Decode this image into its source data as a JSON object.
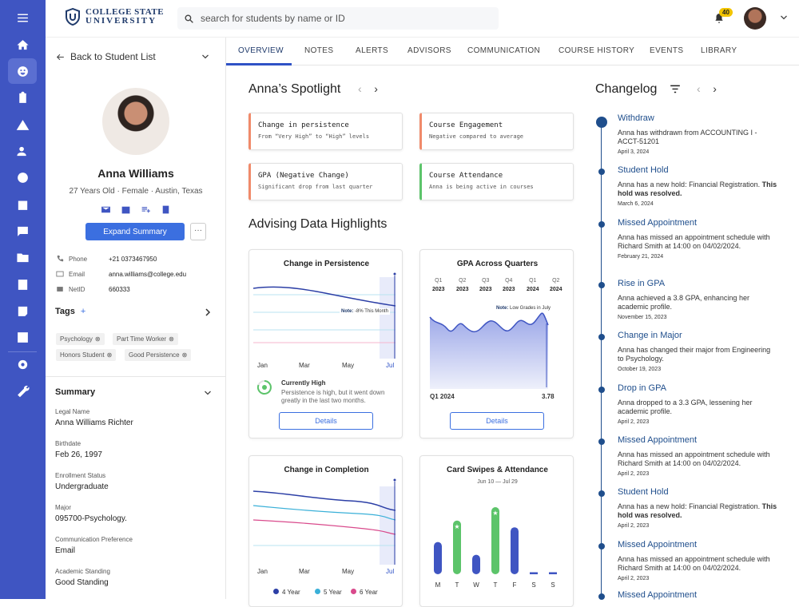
{
  "app": {
    "logo_line1": "COLLEGE STATE",
    "logo_line2": "UNIVERSITY",
    "search_placeholder": "search for students by name or ID",
    "notif_count": "40"
  },
  "rail": [
    "menu-icon",
    "home-icon",
    "student-icon",
    "clipboard-icon",
    "alert-icon",
    "user-check-icon",
    "bolt-icon",
    "calendar-icon",
    "chat-icon",
    "folder-icon",
    "id-card-icon",
    "add-note-icon",
    "chart-icon",
    "settings-icon",
    "wrench-icon"
  ],
  "student": {
    "back": "Back to Student List",
    "name": "Anna Williams",
    "meta": "27 Years Old  ·  Female  ·  Austin, Texas",
    "expand": "Expand Summary",
    "more": "···",
    "phone_label": "Phone",
    "phone": "+21 0373467950",
    "email_label": "Email",
    "email": "anna.williams@college.edu",
    "netid_label": "NetID",
    "netid": "660333",
    "tags_title": "Tags",
    "tags_add": "+",
    "tags": [
      "Psychology",
      "Part Time Worker",
      "Honors Student",
      "Good Persistence"
    ],
    "summary_title": "Summary",
    "summary": [
      {
        "label": "Legal Name",
        "value": "Anna Williams Richter"
      },
      {
        "label": "Birthdate",
        "value": "Feb 26, 1997"
      },
      {
        "label": "Enrollment Status",
        "value": "Undergraduate"
      },
      {
        "label": "Major",
        "value": "095700-Psychology."
      },
      {
        "label": "Communication Preference",
        "value": "Email"
      },
      {
        "label": "Academic Standing",
        "value": "Good Standing"
      }
    ]
  },
  "tabs": [
    "OVERVIEW",
    "NOTES",
    "ALERTS",
    "ADVISORS",
    "COMMUNICATION",
    "COURSE HISTORY",
    "EVENTS",
    "LIBRARY"
  ],
  "spotlight": {
    "title": "Anna’s Spotlight",
    "cards": [
      {
        "title": "Change in persistence",
        "sub": "From “Very High” to “High” levels",
        "color": "#f08a6a"
      },
      {
        "title": "Course Engagement",
        "sub": "Negative compared to average",
        "color": "#f08a6a"
      },
      {
        "title": "GPA (Negative Change)",
        "sub": "Significant drop from last quarter",
        "color": "#f08a6a"
      },
      {
        "title": "Course Attendance",
        "sub": "Anna is being active in courses",
        "color": "#5cc46a"
      }
    ]
  },
  "highlights": {
    "title": "Advising Data Highlights",
    "persistence": {
      "title": "Change in Persistence",
      "note": "Note:",
      "note_text": " -8% This Month",
      "status_title": "Currently High",
      "status_text": "Persistence is high, but it went down greatly in the last two months.",
      "details": "Details",
      "xlabels": [
        "Jan",
        "Mar",
        "May",
        "Jul"
      ]
    },
    "gpa": {
      "title": "GPA Across Quarters",
      "quarters": [
        "Q1",
        "Q2",
        "Q3",
        "Q4",
        "Q1",
        "Q2"
      ],
      "years": [
        "2023",
        "2023",
        "2023",
        "2023",
        "2024",
        "2024"
      ],
      "note": "Note:",
      "note_text": " Low Grades in July",
      "left_label": "Q1 2024",
      "right_label": "3.78",
      "details": "Details"
    },
    "completion": {
      "title": "Change in Completion",
      "xlabels": [
        "Jan",
        "Mar",
        "May",
        "Jul"
      ],
      "legend": [
        "4 Year",
        "5 Year",
        "6 Year"
      ],
      "legend_colors": [
        "#2c3fa6",
        "#3ab0d8",
        "#d94a8c"
      ]
    },
    "swipes": {
      "title": "Card Swipes & Attendance",
      "range": "Jun 10 — Jul 29",
      "days": [
        "M",
        "T",
        "W",
        "T",
        "F",
        "S",
        "S"
      ]
    }
  },
  "chart_data": [
    {
      "type": "bar",
      "title": "Card Swipes & Attendance",
      "categories": [
        "M",
        "T",
        "W",
        "T",
        "F",
        "S",
        "S"
      ],
      "values": [
        48,
        80,
        29,
        100,
        70,
        3,
        3
      ]
    }
  ],
  "changelog": {
    "title": "Changelog",
    "events": [
      {
        "title": "Withdraw",
        "desc": "Anna has withdrawn from ACCOUNTING I - ACCT-51201",
        "date": "April 3, 2024"
      },
      {
        "title": "Student Hold",
        "desc": "Anna has a new hold: Financial Registration.",
        "bold": " This hold was resolved.",
        "date": "March 6, 2024"
      },
      {
        "title": "Missed Appointment",
        "desc": "Anna has missed an appointment schedule with Richard Smith at 14:00 on 04/02/2024.",
        "date": "February 21, 2024"
      },
      {
        "title": "Rise in GPA",
        "desc": "Anna achieved a 3.8 GPA, enhancing her academic profile.",
        "date": "November 15, 2023"
      },
      {
        "title": "Change in Major",
        "desc": "Anna has changed their major from Engineering to Psychology.",
        "date": "October 19, 2023"
      },
      {
        "title": "Drop in GPA",
        "desc": "Anna dropped to a 3.3 GPA, lessening her academic profile.",
        "date": "April 2, 2023"
      },
      {
        "title": "Missed Appointment",
        "desc": "Anna has missed an appointment schedule with Richard Smith at 14:00 on 04/02/2024.",
        "date": "April 2, 2023"
      },
      {
        "title": "Student Hold",
        "desc": "Anna has a new hold: Financial Registration.",
        "bold": " This hold was resolved.",
        "date": "April 2, 2023"
      },
      {
        "title": "Missed Appointment",
        "desc": "Anna has missed an appointment schedule with Richard Smith at 14:00 on 04/02/2024.",
        "date": "April 2, 2023"
      },
      {
        "title": "Missed Appointment",
        "desc": "",
        "date": ""
      }
    ]
  }
}
